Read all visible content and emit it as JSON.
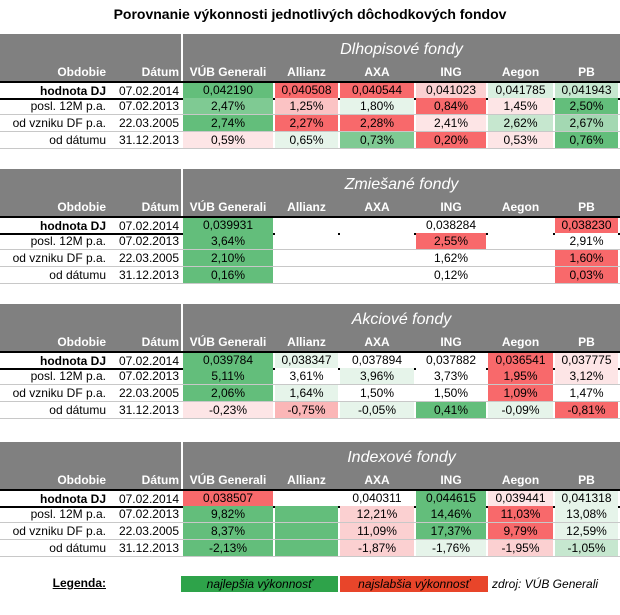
{
  "title": "Porovnanie výkonnosti jednotlivých dôchodkových fondov",
  "columns": [
    "Obdobie",
    "Dátum",
    "VÚB Generali",
    "Allianz",
    "AXA",
    "ING",
    "Aegon",
    "PB"
  ],
  "row_labels": [
    "hodnota DJ",
    "posl. 12M p.a.",
    "od vzniku DF p.a.",
    "od dátumu"
  ],
  "row_dates": [
    "07.02.2014",
    "07.02.2013",
    "22.03.2005",
    "31.12.2013"
  ],
  "colors": {
    "header_bg": "#808080",
    "best_green": "#2ea34a",
    "worst_red": "#e8452a",
    "strong_green": "#63be7b",
    "light_green": "#c6e7cf",
    "pale_green": "#e6f4ea",
    "strong_red": "#f8696b",
    "light_red": "#fbb6b7",
    "pale_red": "#fde5e6"
  },
  "sections": [
    {
      "title": "Dlhopisové fondy",
      "rows": [
        [
          {
            "v": "0,042190",
            "bg": "#63be7b"
          },
          {
            "v": "0,040508",
            "bg": "#f8696b"
          },
          {
            "v": "0,040544",
            "bg": "#f8696b"
          },
          {
            "v": "0,041023",
            "bg": "#fbd0d1"
          },
          {
            "v": "0,041785",
            "bg": "#d9efe0"
          },
          {
            "v": "0,041943",
            "bg": "#c6e7cf"
          }
        ],
        [
          {
            "v": "2,47%",
            "bg": "#7fca93"
          },
          {
            "v": "1,25%",
            "bg": "#fbc3c4"
          },
          {
            "v": "1,80%",
            "bg": "#e6f4ea"
          },
          {
            "v": "0,84%",
            "bg": "#f8696b"
          },
          {
            "v": "1,45%",
            "bg": "#fde5e6"
          },
          {
            "v": "2,50%",
            "bg": "#63be7b"
          }
        ],
        [
          {
            "v": "2,74%",
            "bg": "#63be7b"
          },
          {
            "v": "2,27%",
            "bg": "#f8696b"
          },
          {
            "v": "2,28%",
            "bg": "#f8696b"
          },
          {
            "v": "2,41%",
            "bg": "#fde5e6"
          },
          {
            "v": "2,62%",
            "bg": "#c6e7cf"
          },
          {
            "v": "2,67%",
            "bg": "#a3d8b2"
          }
        ],
        [
          {
            "v": "0,59%",
            "bg": "#fde5e6"
          },
          {
            "v": "0,65%",
            "bg": "#e6f4ea"
          },
          {
            "v": "0,73%",
            "bg": "#7fca93"
          },
          {
            "v": "0,20%",
            "bg": "#f8696b"
          },
          {
            "v": "0,53%",
            "bg": "#fde5e6"
          },
          {
            "v": "0,76%",
            "bg": "#63be7b"
          }
        ]
      ]
    },
    {
      "title": "Zmiešané fondy",
      "rows": [
        [
          {
            "v": "0,039931",
            "bg": "#63be7b"
          },
          {
            "v": "",
            "bg": "#ffffff"
          },
          {
            "v": "",
            "bg": "#ffffff"
          },
          {
            "v": "0,038284",
            "bg": "#ffffff"
          },
          {
            "v": "",
            "bg": "#ffffff"
          },
          {
            "v": "0,038230",
            "bg": "#f8696b"
          }
        ],
        [
          {
            "v": "3,64%",
            "bg": "#63be7b"
          },
          {
            "v": "",
            "bg": "#ffffff"
          },
          {
            "v": "",
            "bg": "#ffffff"
          },
          {
            "v": "2,55%",
            "bg": "#f8696b"
          },
          {
            "v": "",
            "bg": "#ffffff"
          },
          {
            "v": "2,91%",
            "bg": "#ffffff"
          }
        ],
        [
          {
            "v": "2,10%",
            "bg": "#63be7b"
          },
          {
            "v": "",
            "bg": "#ffffff"
          },
          {
            "v": "",
            "bg": "#ffffff"
          },
          {
            "v": "1,62%",
            "bg": "#ffffff"
          },
          {
            "v": "",
            "bg": "#ffffff"
          },
          {
            "v": "1,60%",
            "bg": "#f8696b"
          }
        ],
        [
          {
            "v": "0,16%",
            "bg": "#63be7b"
          },
          {
            "v": "",
            "bg": "#ffffff"
          },
          {
            "v": "",
            "bg": "#ffffff"
          },
          {
            "v": "0,12%",
            "bg": "#ffffff"
          },
          {
            "v": "",
            "bg": "#ffffff"
          },
          {
            "v": "0,03%",
            "bg": "#f8696b"
          }
        ]
      ]
    },
    {
      "title": "Akciové fondy",
      "rows": [
        [
          {
            "v": "0,039784",
            "bg": "#63be7b"
          },
          {
            "v": "0,038347",
            "bg": "#e6f4ea"
          },
          {
            "v": "0,037894",
            "bg": "#ffffff"
          },
          {
            "v": "0,037882",
            "bg": "#ffffff"
          },
          {
            "v": "0,036541",
            "bg": "#f8696b"
          },
          {
            "v": "0,037775",
            "bg": "#fde5e6"
          }
        ],
        [
          {
            "v": "5,11%",
            "bg": "#63be7b"
          },
          {
            "v": "3,61%",
            "bg": "#ffffff"
          },
          {
            "v": "3,96%",
            "bg": "#e6f4ea"
          },
          {
            "v": "3,73%",
            "bg": "#ffffff"
          },
          {
            "v": "1,95%",
            "bg": "#f8696b"
          },
          {
            "v": "3,12%",
            "bg": "#fde5e6"
          }
        ],
        [
          {
            "v": "2,06%",
            "bg": "#63be7b"
          },
          {
            "v": "1,64%",
            "bg": "#e6f4ea"
          },
          {
            "v": "1,50%",
            "bg": "#ffffff"
          },
          {
            "v": "1,50%",
            "bg": "#ffffff"
          },
          {
            "v": "1,09%",
            "bg": "#f8696b"
          },
          {
            "v": "1,47%",
            "bg": "#ffffff"
          }
        ],
        [
          {
            "v": "-0,23%",
            "bg": "#fde5e6"
          },
          {
            "v": "-0,75%",
            "bg": "#fbb6b7"
          },
          {
            "v": "-0,05%",
            "bg": "#e6f4ea"
          },
          {
            "v": "0,41%",
            "bg": "#63be7b"
          },
          {
            "v": "-0,09%",
            "bg": "#e6f4ea"
          },
          {
            "v": "-0,81%",
            "bg": "#f8696b"
          }
        ]
      ]
    },
    {
      "title": "Indexové fondy",
      "rows": [
        [
          {
            "v": "0,038507",
            "bg": "#f8696b"
          },
          {
            "v": "",
            "bg": "#ffffff"
          },
          {
            "v": "0,040311",
            "bg": "#ffffff"
          },
          {
            "v": "0,044615",
            "bg": "#63be7b"
          },
          {
            "v": "0,039441",
            "bg": "#fde5e6"
          },
          {
            "v": "0,041318",
            "bg": "#e6f4ea"
          }
        ],
        [
          {
            "v": "9,82%",
            "bg": "#63be7b"
          },
          {
            "v": "",
            "bg": "#63be7b"
          },
          {
            "v": "12,21%",
            "bg": "#fbd0d1"
          },
          {
            "v": "14,46%",
            "bg": "#63be7b"
          },
          {
            "v": "11,03%",
            "bg": "#f8696b"
          },
          {
            "v": "13,08%",
            "bg": "#e6f4ea"
          }
        ],
        [
          {
            "v": "8,37%",
            "bg": "#63be7b"
          },
          {
            "v": "",
            "bg": "#63be7b"
          },
          {
            "v": "11,09%",
            "bg": "#fbd0d1"
          },
          {
            "v": "17,37%",
            "bg": "#63be7b"
          },
          {
            "v": "9,79%",
            "bg": "#f8696b"
          },
          {
            "v": "12,59%",
            "bg": "#e6f4ea"
          }
        ],
        [
          {
            "v": "-2,13%",
            "bg": "#63be7b"
          },
          {
            "v": "",
            "bg": "#63be7b"
          },
          {
            "v": "-1,87%",
            "bg": "#fbd0d1"
          },
          {
            "v": "-1,76%",
            "bg": "#e6f4ea"
          },
          {
            "v": "-1,95%",
            "bg": "#fbd0d1"
          },
          {
            "v": "-1,05%",
            "bg": "#c6e7cf"
          }
        ]
      ]
    }
  ],
  "legend": {
    "label": "Legenda:",
    "best": "najlepšia výkonnosť",
    "worst": "najslabšia výkonnosť",
    "source": "zdroj: VÚB Generali"
  }
}
